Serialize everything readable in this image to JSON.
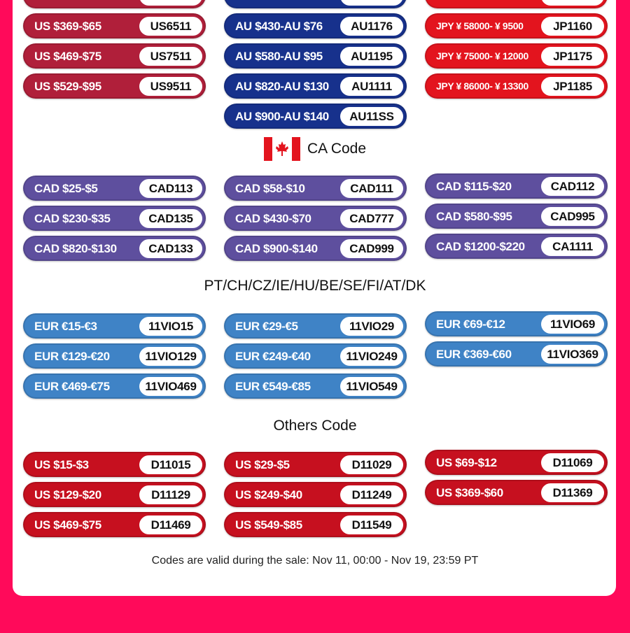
{
  "colors": {
    "background": "#ff0a5a",
    "us": "#b01f3a",
    "au": "#17318c",
    "jp": "#e3141e",
    "ca": "#5e4f9e",
    "eur": "#3f83c6",
    "others": "#c6101f"
  },
  "top_section": {
    "us": [
      {
        "label": "US $369-$65",
        "code": "US6511"
      },
      {
        "label": "US $469-$75",
        "code": "US7511"
      },
      {
        "label": "US $529-$95",
        "code": "US9511"
      }
    ],
    "au": [
      {
        "label": "AU $430-AU $76",
        "code": "AU1176"
      },
      {
        "label": "AU $580-AU $95",
        "code": "AU1195"
      },
      {
        "label": "AU $820-AU $130",
        "code": "AU1111"
      },
      {
        "label": "AU $900-AU $140",
        "code": "AU11SS"
      }
    ],
    "jp": [
      {
        "label": "JPY ¥ 58000- ¥ 9500",
        "code": "JP1160"
      },
      {
        "label": "JPY ¥ 75000- ¥ 12000",
        "code": "JP1175"
      },
      {
        "label": "JPY ¥ 86000- ¥ 13300",
        "code": "JP1185"
      }
    ]
  },
  "ca": {
    "title": "CA Code",
    "flag_icon": "canada-flag-icon",
    "columns": [
      [
        {
          "label": "CAD $25-$5",
          "code": "CAD113"
        },
        {
          "label": "CAD $230-$35",
          "code": "CAD135"
        },
        {
          "label": "CAD $820-$130",
          "code": "CAD133"
        }
      ],
      [
        {
          "label": "CAD $58-$10",
          "code": "CAD111"
        },
        {
          "label": "CAD $430-$70",
          "code": "CAD777"
        },
        {
          "label": "CAD $900-$140",
          "code": "CAD999"
        }
      ],
      [
        {
          "label": "CAD $115-$20",
          "code": "CAD112"
        },
        {
          "label": "CAD $580-$95",
          "code": "CAD995"
        },
        {
          "label": "CAD $1200-$220",
          "code": "CA1111"
        }
      ]
    ]
  },
  "eur": {
    "title": "PT/CH/CZ/IE/HU/BE/SE/FI/AT/DK",
    "columns": [
      [
        {
          "label": "EUR €15-€3",
          "code": "11VIO15"
        },
        {
          "label": "EUR €129-€20",
          "code": "11VIO129"
        },
        {
          "label": "EUR €469-€75",
          "code": "11VIO469"
        }
      ],
      [
        {
          "label": "EUR €29-€5",
          "code": "11VIO29"
        },
        {
          "label": "EUR €249-€40",
          "code": "11VIO249"
        },
        {
          "label": "EUR €549-€85",
          "code": "11VIO549"
        }
      ],
      [
        {
          "label": "EUR €69-€12",
          "code": "11VIO69"
        },
        {
          "label": "EUR €369-€60",
          "code": "11VIO369"
        }
      ]
    ]
  },
  "others": {
    "title": "Others Code",
    "columns": [
      [
        {
          "label": "US $15-$3",
          "code": "D11015"
        },
        {
          "label": "US $129-$20",
          "code": "D11129"
        },
        {
          "label": "US $469-$75",
          "code": "D11469"
        }
      ],
      [
        {
          "label": "US $29-$5",
          "code": "D11029"
        },
        {
          "label": "US $249-$40",
          "code": "D11249"
        },
        {
          "label": "US $549-$85",
          "code": "D11549"
        }
      ],
      [
        {
          "label": "US $69-$12",
          "code": "D11069"
        },
        {
          "label": "US $369-$60",
          "code": "D11369"
        }
      ]
    ]
  },
  "footer": "Codes are valid during the sale: Nov 11, 00:00 - Nov 19, 23:59 PT"
}
